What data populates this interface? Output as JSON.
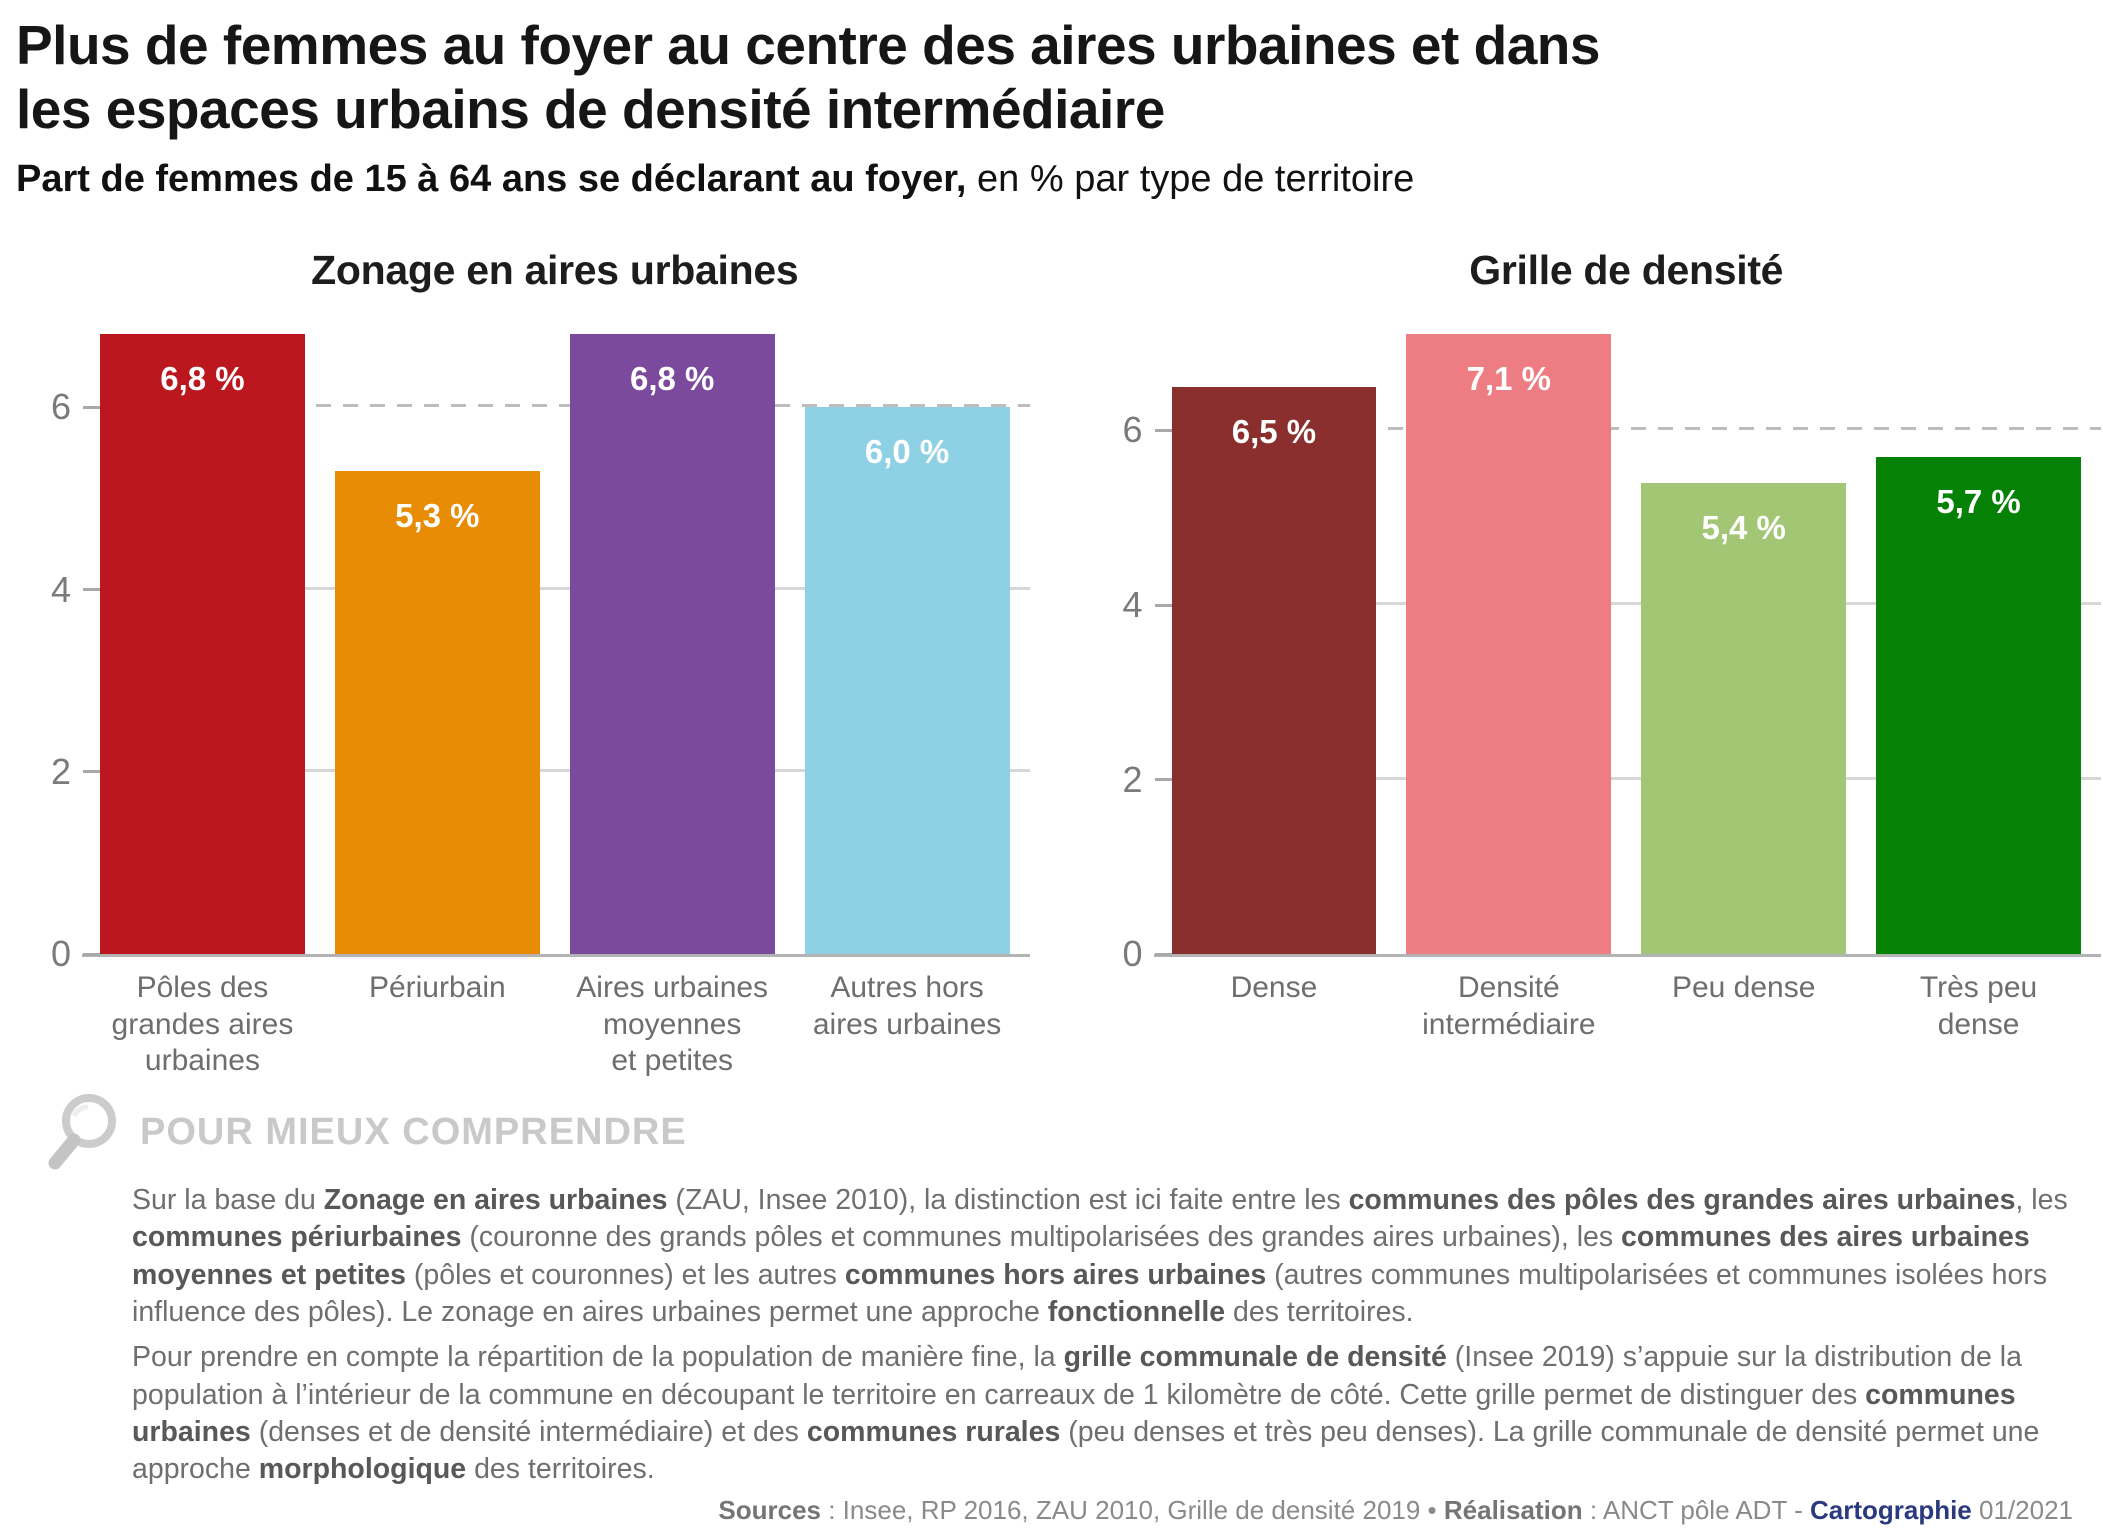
{
  "header": {
    "title": "Plus de femmes au foyer au centre des aires urbaines et dans\nles espaces urbains de densité intermédiaire",
    "subtitle_bold": "Part de femmes de 15 à 64 ans se déclarant au foyer,",
    "subtitle_regular": " en % par type de territoire"
  },
  "chart_data": [
    {
      "type": "bar",
      "title": "Zonage en aires urbaines",
      "categories": [
        "Pôles des\ngrandes aires\nurbaines",
        "Périurbain",
        "Aires urbaines\nmoyennes\net petites",
        "Autres hors\naires urbaines"
      ],
      "values": [
        6.8,
        5.3,
        6.8,
        6.0
      ],
      "value_labels": [
        "6,8 %",
        "5,3 %",
        "6,8 %",
        "6,0 %"
      ],
      "colors": [
        "#bc161f",
        "#e78c04",
        "#7b4a9d",
        "#8ed1e5"
      ],
      "bar_label_color": "#ffffff",
      "ylim": [
        0,
        6.8
      ],
      "yticks": [
        {
          "value": 0,
          "label": "0"
        },
        {
          "value": 2,
          "label": "2"
        },
        {
          "value": 4,
          "label": "4"
        },
        {
          "value": 6,
          "label": "6"
        }
      ],
      "solid_gridlines": [
        2,
        4
      ],
      "dashed_gridlines": [
        6
      ],
      "grid": "horizontal",
      "legend": "none"
    },
    {
      "type": "bar",
      "title": "Grille de densité",
      "categories": [
        "Dense",
        "Densité\nintermédiaire",
        "Peu dense",
        "Très peu dense"
      ],
      "values": [
        6.5,
        7.1,
        5.4,
        5.7
      ],
      "value_labels": [
        "6,5 %",
        "7,1 %",
        "5,4 %",
        "5,7 %"
      ],
      "colors": [
        "#8a2f2d",
        "#ee7d83",
        "#a3c674",
        "#058205"
      ],
      "bar_label_color": "#ffffff",
      "ylim": [
        0,
        7.1
      ],
      "yticks": [
        {
          "value": 0,
          "label": "0"
        },
        {
          "value": 2,
          "label": "2"
        },
        {
          "value": 4,
          "label": "4"
        },
        {
          "value": 6,
          "label": "6"
        }
      ],
      "solid_gridlines": [
        2,
        4
      ],
      "dashed_gridlines": [
        6
      ],
      "grid": "horizontal",
      "legend": "none"
    }
  ],
  "explainer": {
    "heading": "POUR MIEUX COMPRENDRE",
    "icon": "magnifier-icon",
    "paragraphs": [
      [
        {
          "t": "Sur la base du "
        },
        {
          "t": "Zonage en aires urbaines",
          "b": true
        },
        {
          "t": " (ZAU, Insee 2010), la distinction est ici faite entre les "
        },
        {
          "t": "communes des pôles des grandes aires urbaines",
          "b": true
        },
        {
          "t": ", les "
        },
        {
          "t": "communes périurbaines",
          "b": true
        },
        {
          "t": " (couronne des grands pôles et communes multipolarisées des grandes aires urbaines), les "
        },
        {
          "t": "communes des aires urbaines moyennes et petites",
          "b": true
        },
        {
          "t": " (pôles et couronnes) et les autres "
        },
        {
          "t": "communes hors aires urbaines",
          "b": true
        },
        {
          "t": " (autres communes multipolarisées et communes isolées hors influence des pôles). Le zonage en aires urbaines permet une approche "
        },
        {
          "t": "fonctionnelle",
          "b": true
        },
        {
          "t": " des territoires."
        }
      ],
      [
        {
          "t": "Pour prendre en compte la répartition de la population de manière fine, la "
        },
        {
          "t": "grille communale de densité",
          "b": true
        },
        {
          "t": " (Insee 2019) s’appuie sur la distribution de la population à l’intérieur de la commune en découpant le territoire en carreaux de 1 kilomètre de côté. Cette grille permet de distinguer des "
        },
        {
          "t": "communes urbaines",
          "b": true
        },
        {
          "t": " (denses et de densité intermédiaire) et des "
        },
        {
          "t": "communes rurales",
          "b": true
        },
        {
          "t": " (peu denses et très peu denses). La grille communale de densité permet une approche "
        },
        {
          "t": "morphologique",
          "b": true
        },
        {
          "t": " des territoires."
        }
      ]
    ]
  },
  "footer": {
    "segments": [
      {
        "t": "Sources",
        "b": true
      },
      {
        "t": " : Insee, RP 2016, ZAU 2010, Grille de densité 2019 • "
      },
      {
        "t": "Réalisation",
        "b": true
      },
      {
        "t": " : ANCT pôle ADT - "
      },
      {
        "t": "Cartographie",
        "b": true,
        "c": "#2b3a80"
      },
      {
        "t": " 01/2021"
      }
    ],
    "accent_navy": "#2b3a80"
  }
}
